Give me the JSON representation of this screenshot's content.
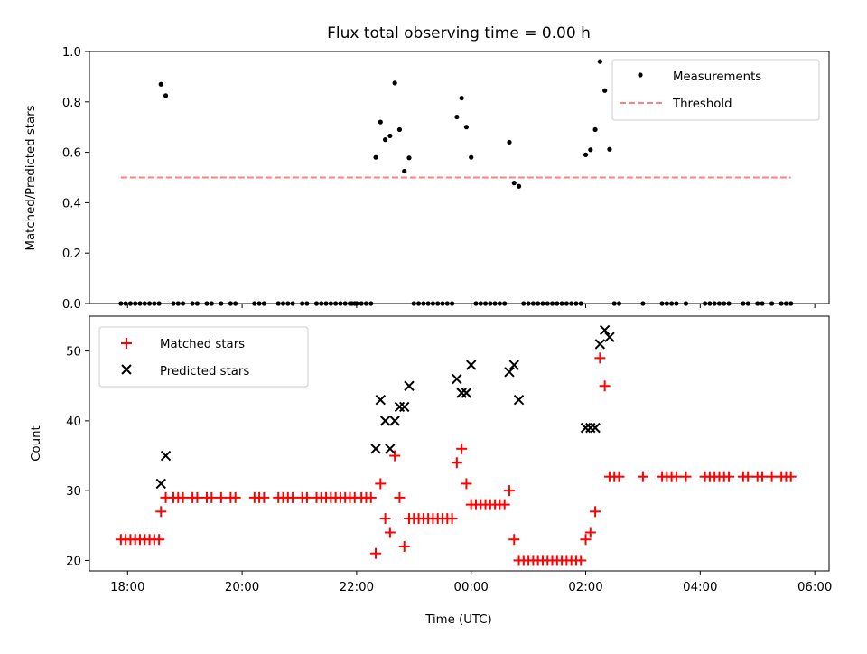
{
  "colors": {
    "measurement": "#000000",
    "threshold": "#ff8080",
    "matched": "#ff0000",
    "predicted": "#000000"
  },
  "chart_data": [
    {
      "type": "scatter",
      "title": "Flux total observing time = 0.00 h",
      "xlabel": "",
      "ylabel": "Matched/Predicted stars",
      "xlim": [
        "17:20",
        "06:15"
      ],
      "ylim": [
        0,
        1.0
      ],
      "yticks": [
        "0.0",
        "0.2",
        "0.4",
        "0.6",
        "0.8",
        "1.0"
      ],
      "xticks": [
        "18:00",
        "20:00",
        "22:00",
        "00:00",
        "02:00",
        "04:00",
        "06:00"
      ],
      "show_xtick_labels": false,
      "grid": false,
      "legend_position": "upper right",
      "series": [
        {
          "name": "Measurements",
          "marker": "dot",
          "points": [
            [
              "17:53",
              0
            ],
            [
              "17:58",
              0
            ],
            [
              "18:03",
              0
            ],
            [
              "18:08",
              0
            ],
            [
              "18:13",
              0
            ],
            [
              "18:18",
              0
            ],
            [
              "18:23",
              0
            ],
            [
              "18:28",
              0
            ],
            [
              "18:33",
              0
            ],
            [
              "18:35",
              0.87
            ],
            [
              "18:40",
              0.825
            ],
            [
              "18:48",
              0
            ],
            [
              "18:53",
              0
            ],
            [
              "18:58",
              0
            ],
            [
              "19:08",
              0
            ],
            [
              "19:13",
              0
            ],
            [
              "19:23",
              0
            ],
            [
              "19:28",
              0
            ],
            [
              "19:38",
              0
            ],
            [
              "19:48",
              0
            ],
            [
              "19:53",
              0
            ],
            [
              "20:13",
              0
            ],
            [
              "20:18",
              0
            ],
            [
              "20:23",
              0
            ],
            [
              "20:38",
              0
            ],
            [
              "20:43",
              0
            ],
            [
              "20:48",
              0
            ],
            [
              "20:53",
              0
            ],
            [
              "21:03",
              0
            ],
            [
              "21:08",
              0
            ],
            [
              "21:18",
              0
            ],
            [
              "21:23",
              0
            ],
            [
              "21:28",
              0
            ],
            [
              "21:33",
              0
            ],
            [
              "21:38",
              0
            ],
            [
              "21:43",
              0
            ],
            [
              "21:48",
              0
            ],
            [
              "21:53",
              0
            ],
            [
              "21:58",
              0
            ],
            [
              "21:55",
              0
            ],
            [
              "22:00",
              0
            ],
            [
              "22:05",
              0
            ],
            [
              "22:10",
              0
            ],
            [
              "22:15",
              0
            ],
            [
              "22:20",
              0.58
            ],
            [
              "22:25",
              0.72
            ],
            [
              "22:30",
              0.65
            ],
            [
              "22:35",
              0.665
            ],
            [
              "22:40",
              0.875
            ],
            [
              "22:45",
              0.69
            ],
            [
              "22:50",
              0.525
            ],
            [
              "22:55",
              0.578
            ],
            [
              "23:00",
              0
            ],
            [
              "23:05",
              0
            ],
            [
              "23:10",
              0
            ],
            [
              "23:15",
              0
            ],
            [
              "23:20",
              0
            ],
            [
              "23:25",
              0
            ],
            [
              "23:30",
              0
            ],
            [
              "23:35",
              0
            ],
            [
              "23:40",
              0
            ],
            [
              "23:45",
              0.74
            ],
            [
              "23:50",
              0.815
            ],
            [
              "23:55",
              0.7
            ],
            [
              "00:00",
              0.58
            ],
            [
              "00:05",
              0
            ],
            [
              "00:10",
              0
            ],
            [
              "00:15",
              0
            ],
            [
              "00:20",
              0
            ],
            [
              "00:25",
              0
            ],
            [
              "00:30",
              0
            ],
            [
              "00:35",
              0
            ],
            [
              "00:40",
              0.64
            ],
            [
              "00:45",
              0.478
            ],
            [
              "00:50",
              0.465
            ],
            [
              "00:55",
              0
            ],
            [
              "01:00",
              0
            ],
            [
              "01:05",
              0
            ],
            [
              "01:10",
              0
            ],
            [
              "01:15",
              0
            ],
            [
              "01:20",
              0
            ],
            [
              "01:25",
              0
            ],
            [
              "01:30",
              0
            ],
            [
              "01:35",
              0
            ],
            [
              "01:40",
              0
            ],
            [
              "01:45",
              0
            ],
            [
              "01:50",
              0
            ],
            [
              "01:55",
              0
            ],
            [
              "02:00",
              0.59
            ],
            [
              "02:05",
              0.61
            ],
            [
              "02:10",
              0.69
            ],
            [
              "02:15",
              0.96
            ],
            [
              "02:20",
              0.845
            ],
            [
              "02:25",
              0.612
            ],
            [
              "02:30",
              0
            ],
            [
              "02:35",
              0
            ],
            [
              "03:00",
              0
            ],
            [
              "03:20",
              0
            ],
            [
              "03:25",
              0
            ],
            [
              "03:30",
              0
            ],
            [
              "03:35",
              0
            ],
            [
              "03:45",
              0
            ],
            [
              "04:05",
              0
            ],
            [
              "04:10",
              0
            ],
            [
              "04:15",
              0
            ],
            [
              "04:20",
              0
            ],
            [
              "04:25",
              0
            ],
            [
              "04:30",
              0
            ],
            [
              "04:45",
              0
            ],
            [
              "04:50",
              0
            ],
            [
              "05:00",
              0
            ],
            [
              "05:05",
              0
            ],
            [
              "05:15",
              0
            ],
            [
              "05:25",
              0
            ],
            [
              "05:30",
              0
            ],
            [
              "05:35",
              0
            ]
          ]
        },
        {
          "name": "Threshold",
          "marker": "dashed-line",
          "points": [
            [
              "17:53",
              0.5
            ],
            [
              "05:35",
              0.5
            ]
          ]
        }
      ]
    },
    {
      "type": "scatter",
      "title": "",
      "xlabel": "Time (UTC)",
      "ylabel": "Count",
      "xlim": [
        "17:20",
        "06:15"
      ],
      "ylim": [
        18.5,
        55
      ],
      "yticks": [
        "20",
        "30",
        "40",
        "50"
      ],
      "xticks": [
        "18:00",
        "20:00",
        "22:00",
        "00:00",
        "02:00",
        "04:00",
        "06:00"
      ],
      "grid": false,
      "legend_position": "upper left",
      "series": [
        {
          "name": "Matched stars",
          "marker": "plus",
          "points": [
            [
              "17:53",
              23
            ],
            [
              "17:58",
              23
            ],
            [
              "18:03",
              23
            ],
            [
              "18:08",
              23
            ],
            [
              "18:13",
              23
            ],
            [
              "18:18",
              23
            ],
            [
              "18:23",
              23
            ],
            [
              "18:28",
              23
            ],
            [
              "18:33",
              23
            ],
            [
              "18:35",
              27
            ],
            [
              "18:40",
              29
            ],
            [
              "18:48",
              29
            ],
            [
              "18:53",
              29
            ],
            [
              "18:58",
              29
            ],
            [
              "19:08",
              29
            ],
            [
              "19:13",
              29
            ],
            [
              "19:23",
              29
            ],
            [
              "19:28",
              29
            ],
            [
              "19:38",
              29
            ],
            [
              "19:48",
              29
            ],
            [
              "19:53",
              29
            ],
            [
              "20:13",
              29
            ],
            [
              "20:18",
              29
            ],
            [
              "20:23",
              29
            ],
            [
              "20:38",
              29
            ],
            [
              "20:43",
              29
            ],
            [
              "20:48",
              29
            ],
            [
              "20:53",
              29
            ],
            [
              "21:03",
              29
            ],
            [
              "21:08",
              29
            ],
            [
              "21:18",
              29
            ],
            [
              "21:23",
              29
            ],
            [
              "21:28",
              29
            ],
            [
              "21:33",
              29
            ],
            [
              "21:38",
              29
            ],
            [
              "21:43",
              29
            ],
            [
              "21:48",
              29
            ],
            [
              "21:53",
              29
            ],
            [
              "21:58",
              29
            ],
            [
              "22:05",
              29
            ],
            [
              "22:10",
              29
            ],
            [
              "22:15",
              29
            ],
            [
              "22:20",
              21
            ],
            [
              "22:25",
              31
            ],
            [
              "22:30",
              26
            ],
            [
              "22:35",
              24
            ],
            [
              "22:40",
              35
            ],
            [
              "22:45",
              29
            ],
            [
              "22:50",
              22
            ],
            [
              "22:55",
              26
            ],
            [
              "23:00",
              26
            ],
            [
              "23:05",
              26
            ],
            [
              "23:10",
              26
            ],
            [
              "23:15",
              26
            ],
            [
              "23:20",
              26
            ],
            [
              "23:25",
              26
            ],
            [
              "23:30",
              26
            ],
            [
              "23:35",
              26
            ],
            [
              "23:40",
              26
            ],
            [
              "23:45",
              34
            ],
            [
              "23:50",
              36
            ],
            [
              "23:55",
              31
            ],
            [
              "00:00",
              28
            ],
            [
              "00:05",
              28
            ],
            [
              "00:10",
              28
            ],
            [
              "00:15",
              28
            ],
            [
              "00:20",
              28
            ],
            [
              "00:25",
              28
            ],
            [
              "00:30",
              28
            ],
            [
              "00:35",
              28
            ],
            [
              "00:40",
              30
            ],
            [
              "00:45",
              23
            ],
            [
              "00:50",
              20
            ],
            [
              "00:55",
              20
            ],
            [
              "01:00",
              20
            ],
            [
              "01:05",
              20
            ],
            [
              "01:10",
              20
            ],
            [
              "01:15",
              20
            ],
            [
              "01:20",
              20
            ],
            [
              "01:25",
              20
            ],
            [
              "01:30",
              20
            ],
            [
              "01:35",
              20
            ],
            [
              "01:40",
              20
            ],
            [
              "01:45",
              20
            ],
            [
              "01:50",
              20
            ],
            [
              "01:55",
              20
            ],
            [
              "02:00",
              23
            ],
            [
              "02:05",
              24
            ],
            [
              "02:10",
              27
            ],
            [
              "02:15",
              49
            ],
            [
              "02:20",
              45
            ],
            [
              "02:25",
              32
            ],
            [
              "02:30",
              32
            ],
            [
              "02:35",
              32
            ],
            [
              "03:00",
              32
            ],
            [
              "03:20",
              32
            ],
            [
              "03:25",
              32
            ],
            [
              "03:30",
              32
            ],
            [
              "03:35",
              32
            ],
            [
              "03:45",
              32
            ],
            [
              "04:05",
              32
            ],
            [
              "04:10",
              32
            ],
            [
              "04:15",
              32
            ],
            [
              "04:20",
              32
            ],
            [
              "04:25",
              32
            ],
            [
              "04:30",
              32
            ],
            [
              "04:45",
              32
            ],
            [
              "04:50",
              32
            ],
            [
              "05:00",
              32
            ],
            [
              "05:05",
              32
            ],
            [
              "05:15",
              32
            ],
            [
              "05:25",
              32
            ],
            [
              "05:30",
              32
            ],
            [
              "05:35",
              32
            ]
          ]
        },
        {
          "name": "Predicted stars",
          "marker": "x",
          "points": [
            [
              "18:35",
              31
            ],
            [
              "18:40",
              35
            ],
            [
              "22:20",
              36
            ],
            [
              "22:25",
              43
            ],
            [
              "22:30",
              40
            ],
            [
              "22:35",
              36
            ],
            [
              "22:40",
              40
            ],
            [
              "22:45",
              42
            ],
            [
              "22:50",
              42
            ],
            [
              "22:55",
              45
            ],
            [
              "23:45",
              46
            ],
            [
              "23:50",
              44
            ],
            [
              "23:55",
              44
            ],
            [
              "00:00",
              48
            ],
            [
              "00:40",
              47
            ],
            [
              "00:45",
              48
            ],
            [
              "00:50",
              43
            ],
            [
              "02:00",
              39
            ],
            [
              "02:05",
              39
            ],
            [
              "02:10",
              39
            ],
            [
              "02:15",
              51
            ],
            [
              "02:20",
              53
            ],
            [
              "02:25",
              52
            ]
          ]
        }
      ]
    }
  ]
}
